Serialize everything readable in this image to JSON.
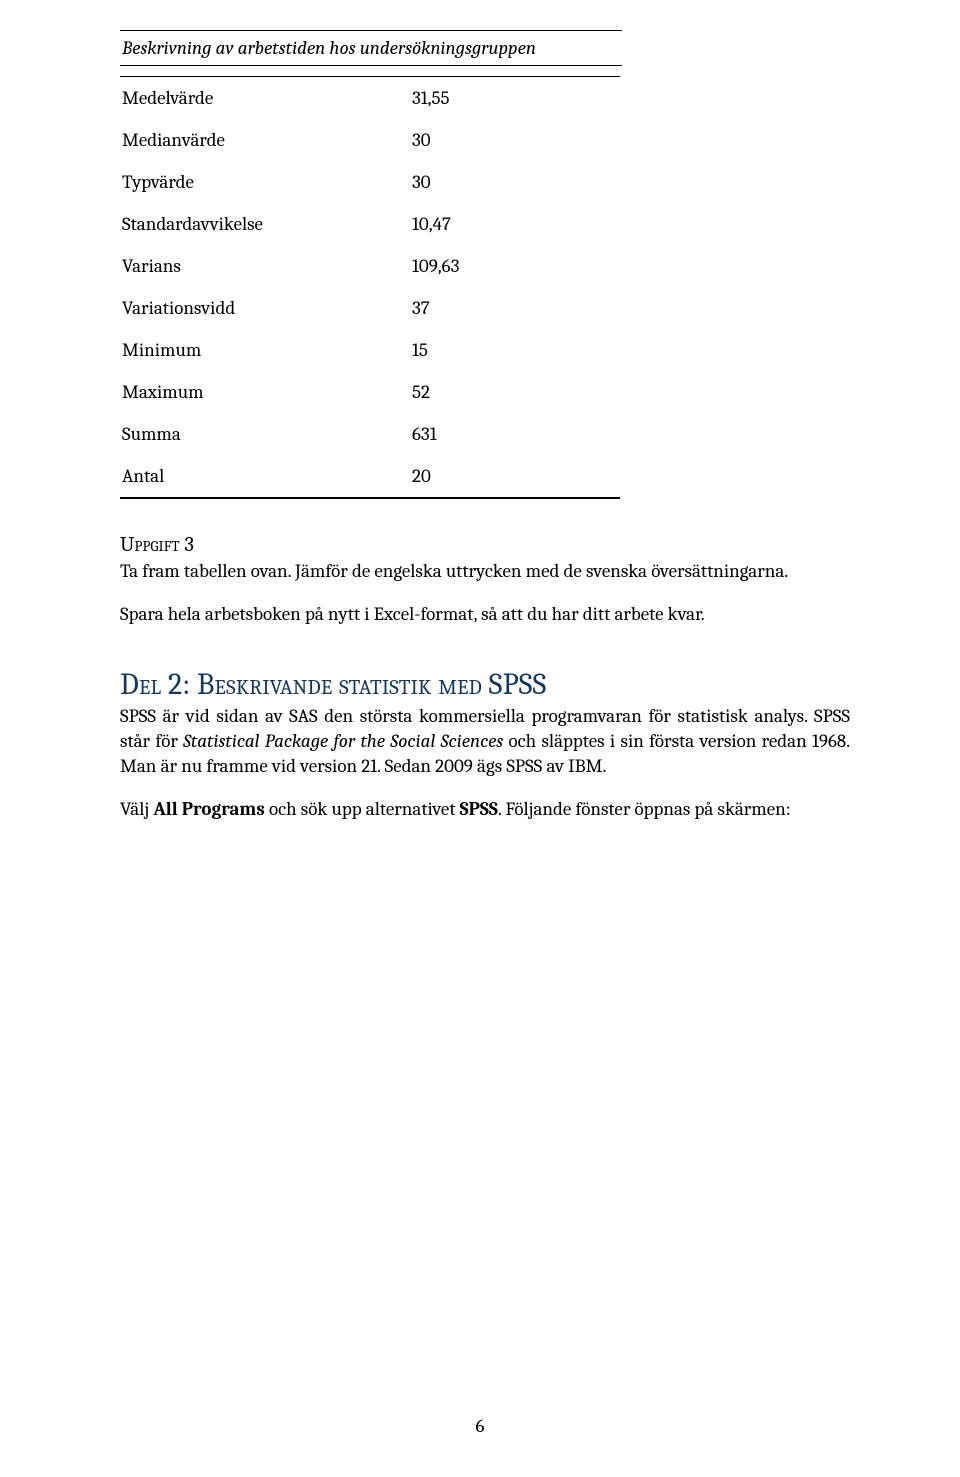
{
  "table": {
    "title": "Beskrivning av arbetstiden hos undersökningsgruppen",
    "rows": [
      {
        "label": "Medelvärde",
        "value": "31,55"
      },
      {
        "label": "Medianvärde",
        "value": "30"
      },
      {
        "label": "Typvärde",
        "value": "30"
      },
      {
        "label": "Standardavvikelse",
        "value": "10,47"
      },
      {
        "label": "Varians",
        "value": "109,63"
      },
      {
        "label": "Variationsvidd",
        "value": "37"
      },
      {
        "label": "Minimum",
        "value": "15"
      },
      {
        "label": "Maximum",
        "value": "52"
      },
      {
        "label": "Summa",
        "value": "631"
      },
      {
        "label": "Antal",
        "value": "20"
      }
    ]
  },
  "uppgift3": {
    "heading": "Uppgift 3",
    "line1": "Ta fram tabellen ovan. Jämför de engelska uttrycken med de svenska översättningarna.",
    "line2": "Spara hela arbetsboken på nytt i Excel-format, så att du har ditt arbete kvar."
  },
  "del2": {
    "heading": "Del 2: Beskrivande statistik med SPSS",
    "p1a": "SPSS är vid sidan av SAS den största kommersiella programvaran för statistisk analys. SPSS står för ",
    "p1_ital": "Statistical Package for the Social Sciences",
    "p1b": " och släpptes i sin första version redan 1968. Man är nu framme vid version 21. Sedan 2009 ägs SPSS av IBM.",
    "p2a": "Välj ",
    "p2_bold1": "All Programs",
    "p2b": " och sök upp alternativet ",
    "p2_bold2": "SPSS",
    "p2c": ". Följande fönster öppnas på skärmen:"
  },
  "pageNumber": "6"
}
